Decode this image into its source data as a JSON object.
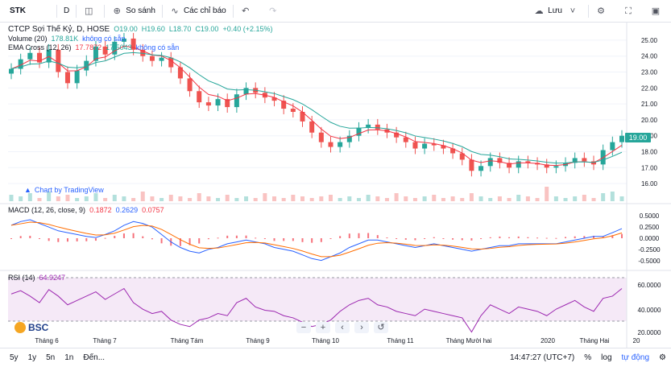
{
  "toolbar": {
    "symbol": "STK",
    "interval": "D",
    "compare_label": "So sánh",
    "indicators_label": "Các chỉ báo",
    "save_label": "Lưu"
  },
  "main_legend": {
    "title": "CTCP Sợi Thế Kỷ, D, HOSE",
    "o": "O19.00",
    "h": "H19.60",
    "l": "L18.70",
    "c": "C19.00",
    "change": "+0.40 (+2.15%)"
  },
  "volume_legend": {
    "name": "Volume (20)",
    "value": "178.81K",
    "na": "không có sẵn"
  },
  "ema_legend": {
    "name": "EMA Cross (12, 26)",
    "v1": "17.7872",
    "v2": "17.5043",
    "na": "không có sẵn"
  },
  "tv_link": "Chart by TradingView",
  "price_axis": [
    "25.00",
    "24.00",
    "23.00",
    "22.00",
    "21.00",
    "20.00",
    "19.00",
    "18.00",
    "17.00",
    "16.00"
  ],
  "last_price": "19.00",
  "macd_legend": {
    "name": "MACD (12, 26, close, 9)",
    "v1": "0.1872",
    "v2": "0.2629",
    "v3": "0.0757"
  },
  "macd_axis": [
    "0.5000",
    "0.2500",
    "0.0000",
    "-0.2500",
    "-0.5000"
  ],
  "rsi_legend": {
    "name": "RSI (14)",
    "value": "64.9247"
  },
  "rsi_axis": [
    "60.0000",
    "40.0000",
    "20.0000"
  ],
  "time_axis": [
    "Tháng 6",
    "Tháng 7",
    "Tháng Tám",
    "Tháng 9",
    "Tháng 10",
    "Tháng 11",
    "Tháng Mười hai",
    "2020",
    "Tháng Hai",
    "20"
  ],
  "brand": "BSC",
  "bottom": {
    "ranges": [
      "5y",
      "1y",
      "5n",
      "1n"
    ],
    "goto": "Đến...",
    "time": "14:47:27 (UTC+7)",
    "percent": "%",
    "log": "log",
    "auto": "tự động"
  },
  "colors": {
    "up": "#26a69a",
    "down": "#ef5350",
    "ema_fast": "#f23645",
    "ema_slow": "#26a69a",
    "macd": "#2962ff",
    "signal": "#ff6d00",
    "rsi": "#9c27b0"
  },
  "chart_data": {
    "type": "candlestick",
    "close": [
      23.2,
      23.8,
      24.2,
      23.6,
      24.4,
      23.0,
      22.3,
      23.1,
      23.7,
      24.6,
      24.1,
      24.9,
      25.1,
      24.4,
      24.0,
      23.7,
      23.9,
      23.3,
      22.6,
      21.8,
      21.1,
      20.9,
      21.3,
      20.8,
      21.6,
      22.0,
      21.7,
      21.4,
      21.2,
      20.7,
      20.5,
      19.9,
      19.2,
      18.6,
      18.3,
      18.6,
      19.0,
      19.5,
      19.7,
      19.4,
      19.2,
      18.9,
      18.6,
      18.2,
      18.5,
      18.4,
      18.2,
      17.9,
      17.5,
      16.8,
      17.1,
      17.6,
      17.3,
      17.0,
      17.4,
      17.3,
      17.2,
      17.0,
      17.1,
      17.3,
      17.6,
      17.4,
      17.2,
      18.1,
      18.6,
      19.0
    ],
    "volume": [
      4,
      3,
      5,
      2,
      6,
      3,
      4,
      2,
      3,
      5,
      2,
      4,
      3,
      2,
      6,
      3,
      2,
      4,
      3,
      2,
      5,
      3,
      2,
      4,
      2,
      3,
      2,
      5,
      3,
      2,
      4,
      3,
      2,
      3,
      4,
      2,
      3,
      2,
      4,
      3,
      2,
      5,
      3,
      2,
      3,
      4,
      2,
      3,
      2,
      5,
      3,
      2,
      3,
      2,
      4,
      3,
      2,
      9,
      3,
      2,
      3,
      4,
      2,
      5,
      6,
      3
    ],
    "macd": [
      0.35,
      0.45,
      0.5,
      0.4,
      0.3,
      0.2,
      0.15,
      0.1,
      0.05,
      0.02,
      0.1,
      0.2,
      0.35,
      0.45,
      0.4,
      0.3,
      0.1,
      -0.1,
      -0.25,
      -0.35,
      -0.4,
      -0.3,
      -0.25,
      -0.15,
      -0.1,
      -0.05,
      -0.1,
      -0.15,
      -0.25,
      -0.3,
      -0.35,
      -0.45,
      -0.55,
      -0.6,
      -0.5,
      -0.4,
      -0.25,
      -0.15,
      -0.05,
      -0.05,
      -0.1,
      -0.15,
      -0.2,
      -0.25,
      -0.2,
      -0.15,
      -0.2,
      -0.25,
      -0.3,
      -0.35,
      -0.3,
      -0.25,
      -0.2,
      -0.2,
      -0.15,
      -0.15,
      -0.15,
      -0.15,
      -0.15,
      -0.1,
      -0.05,
      0.0,
      0.05,
      0.05,
      0.15,
      0.26
    ],
    "rsi": [
      60,
      63,
      58,
      52,
      64,
      58,
      50,
      54,
      58,
      62,
      55,
      60,
      65,
      52,
      46,
      42,
      44,
      36,
      32,
      30,
      36,
      38,
      42,
      40,
      52,
      56,
      48,
      45,
      44,
      40,
      38,
      34,
      30,
      32,
      36,
      44,
      50,
      54,
      56,
      50,
      48,
      44,
      42,
      40,
      46,
      44,
      42,
      40,
      38,
      25,
      40,
      50,
      46,
      42,
      48,
      46,
      44,
      40,
      46,
      50,
      54,
      48,
      44,
      56,
      58,
      65
    ]
  }
}
